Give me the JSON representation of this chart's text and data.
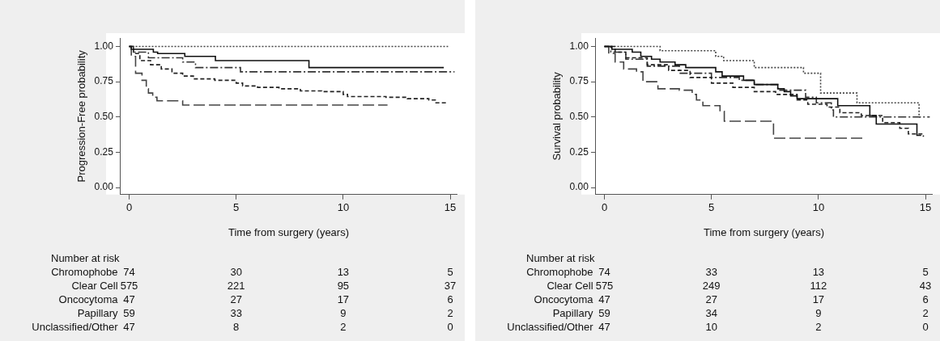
{
  "chart_data": [
    {
      "type": "step",
      "xlabel": "Time from surgery (years)",
      "ylabel": "Progression-Free probability",
      "xlim": [
        -0.4,
        15.3
      ],
      "ylim": [
        -0.05,
        1.06
      ],
      "xticks": [
        0,
        5,
        10,
        15
      ],
      "yticks": [
        {
          "value": 0,
          "label": "0.00"
        },
        {
          "value": 0.25,
          "label": "0.25"
        },
        {
          "value": 0.5,
          "label": "0.50"
        },
        {
          "value": 0.75,
          "label": "0.75"
        },
        {
          "value": 1,
          "label": "1.00"
        }
      ],
      "grid": false,
      "legend": false,
      "marker": "none",
      "series": [
        {
          "color": "#111111",
          "line_style": "solid",
          "x": [
            0,
            0.1,
            1.13,
            1.33,
            2.6,
            4.03,
            8.4,
            14.7
          ],
          "values": [
            1,
            0.98,
            0.96,
            0.95,
            0.93,
            0.9,
            0.85,
            0.85
          ]
        },
        {
          "color": "#222222",
          "line_style": "dashed",
          "x": [
            0,
            0.2,
            0.5,
            1,
            1.5,
            2,
            2.5,
            3,
            4,
            5,
            5.3,
            6,
            7,
            8,
            9,
            10,
            10.2,
            12,
            13,
            14,
            14.3,
            14.9
          ],
          "values": [
            1,
            0.95,
            0.9,
            0.87,
            0.84,
            0.81,
            0.79,
            0.77,
            0.76,
            0.74,
            0.72,
            0.71,
            0.7,
            0.685,
            0.68,
            0.66,
            0.645,
            0.64,
            0.63,
            0.62,
            0.6,
            0.6
          ]
        },
        {
          "color": "#444444",
          "line_style": "dotted",
          "x": [
            0,
            14.9
          ],
          "values": [
            1,
            1
          ]
        },
        {
          "color": "#333333",
          "line_style": "dashdot",
          "x": [
            0,
            0.2,
            0.9,
            2.5,
            3.1,
            5.2,
            15.2
          ],
          "values": [
            1,
            0.96,
            0.92,
            0.89,
            0.85,
            0.82,
            0.82
          ]
        },
        {
          "color": "#444444",
          "line_style": "longdash",
          "x": [
            0,
            0.1,
            0.3,
            0.6,
            0.8,
            0.9,
            1.1,
            1.3,
            2.5,
            12.07
          ],
          "values": [
            1,
            0.93,
            0.81,
            0.76,
            0.7,
            0.67,
            0.64,
            0.615,
            0.585,
            0.585
          ]
        }
      ],
      "annotations": [
        "Number at risk",
        "Chromophobe",
        "74",
        "30",
        "13",
        "5",
        "Clear Cell",
        "575",
        "221",
        "95",
        "37",
        "Oncocytoma",
        "47",
        "27",
        "17",
        "6",
        "Papillary",
        "59",
        "33",
        "9",
        "2",
        "Unclassified/Other",
        "47",
        "8",
        "2",
        "0"
      ]
    },
    {
      "type": "step",
      "xlabel": "Time from surgery (years)",
      "ylabel": "Survival probability",
      "xlim": [
        -0.4,
        15.3
      ],
      "ylim": [
        -0.05,
        1.06
      ],
      "xticks": [
        0,
        5,
        10,
        15
      ],
      "yticks": [
        {
          "value": 0,
          "label": "0.00"
        },
        {
          "value": 0.25,
          "label": "0.25"
        },
        {
          "value": 0.5,
          "label": "0.50"
        },
        {
          "value": 0.75,
          "label": "0.75"
        },
        {
          "value": 1,
          "label": "1.00"
        }
      ],
      "grid": false,
      "legend": false,
      "marker": "none",
      "series": [
        {
          "color": "#111111",
          "line_style": "solid",
          "x": [
            0,
            0.35,
            1.3,
            1.7,
            2.2,
            2.6,
            3.3,
            3.8,
            5.2,
            5.5,
            6.5,
            7,
            8.1,
            8.4,
            8.7,
            9,
            10.9,
            12.4,
            12.7,
            14.6,
            14.8
          ],
          "values": [
            1,
            0.98,
            0.96,
            0.93,
            0.91,
            0.89,
            0.87,
            0.85,
            0.82,
            0.79,
            0.76,
            0.73,
            0.7,
            0.68,
            0.65,
            0.63,
            0.58,
            0.51,
            0.45,
            0.37,
            0.37
          ]
        },
        {
          "color": "#222222",
          "line_style": "dashed",
          "x": [
            0,
            0.5,
            1,
            2,
            3,
            4,
            5,
            6,
            7,
            8,
            9,
            9.5,
            10.4,
            11,
            12,
            13,
            13.8,
            14.2,
            14.9
          ],
          "values": [
            1,
            0.96,
            0.92,
            0.87,
            0.83,
            0.78,
            0.74,
            0.71,
            0.68,
            0.66,
            0.62,
            0.59,
            0.57,
            0.53,
            0.51,
            0.46,
            0.42,
            0.38,
            0.36
          ]
        },
        {
          "color": "#444444",
          "line_style": "dotted",
          "x": [
            0,
            2.6,
            5.2,
            5.57,
            7,
            9.3,
            10.1,
            11.8,
            14.7,
            14.78
          ],
          "values": [
            1,
            0.97,
            0.93,
            0.9,
            0.85,
            0.81,
            0.67,
            0.6,
            0.5,
            0.5
          ]
        },
        {
          "color": "#333333",
          "line_style": "dashdot",
          "x": [
            0,
            0.3,
            1,
            2,
            3.5,
            5,
            6.3,
            7,
            8.1,
            9.4,
            9.9,
            10.6,
            10.7,
            15.2
          ],
          "values": [
            1,
            0.96,
            0.91,
            0.86,
            0.81,
            0.78,
            0.76,
            0.73,
            0.69,
            0.64,
            0.6,
            0.55,
            0.5,
            0.5
          ]
        },
        {
          "color": "#444444",
          "line_style": "longdash",
          "x": [
            0,
            0.2,
            0.5,
            0.9,
            1.5,
            1.8,
            2.5,
            3.5,
            4.1,
            4.3,
            4.6,
            5.4,
            5.6,
            7.9,
            12.1
          ],
          "values": [
            1,
            0.95,
            0.89,
            0.84,
            0.82,
            0.75,
            0.7,
            0.69,
            0.66,
            0.62,
            0.58,
            0.54,
            0.47,
            0.35,
            0.35
          ]
        }
      ],
      "annotations": [
        "Number at risk",
        "Chromophobe",
        "74",
        "33",
        "13",
        "5",
        "Clear Cell",
        "575",
        "249",
        "112",
        "43",
        "Oncocytoma",
        "47",
        "27",
        "17",
        "6",
        "Papillary",
        "59",
        "34",
        "9",
        "2",
        "Unclassified/Other",
        "47",
        "10",
        "2",
        "0"
      ]
    }
  ]
}
